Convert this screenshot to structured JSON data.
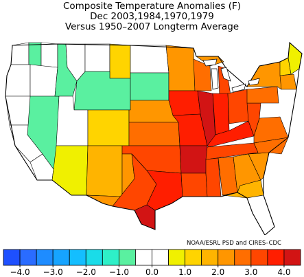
{
  "title": {
    "line1": "Composite Temperature Anomalies (F)",
    "line2": "Dec  2003,1984,1970,1979",
    "line3": "Versus 1950–2007 Longterm Average"
  },
  "credit": "NOAA/ESRL PSD and CIRES–CDC",
  "colorbar": {
    "bins": [
      {
        "lo": -4.5,
        "hi": -4.0,
        "color": "#1e50ff"
      },
      {
        "lo": -4.0,
        "hi": -3.5,
        "color": "#2a6cff"
      },
      {
        "lo": -3.5,
        "hi": -3.0,
        "color": "#1e8cff"
      },
      {
        "lo": -3.0,
        "hi": -2.5,
        "color": "#16a4ff"
      },
      {
        "lo": -2.5,
        "hi": -2.0,
        "color": "#14beff"
      },
      {
        "lo": -2.0,
        "hi": -1.5,
        "color": "#1adce8"
      },
      {
        "lo": -1.5,
        "hi": -1.0,
        "color": "#2ef0c8"
      },
      {
        "lo": -1.0,
        "hi": -0.5,
        "color": "#5af0a0"
      },
      {
        "lo": -0.5,
        "hi": 0.0,
        "color": "#ffffff"
      },
      {
        "lo": 0.0,
        "hi": 0.5,
        "color": "#ffffff"
      },
      {
        "lo": 0.5,
        "hi": 1.0,
        "color": "#f0f000"
      },
      {
        "lo": 1.0,
        "hi": 1.5,
        "color": "#ffd400"
      },
      {
        "lo": 1.5,
        "hi": 2.0,
        "color": "#ffb400"
      },
      {
        "lo": 2.0,
        "hi": 2.5,
        "color": "#ff9600"
      },
      {
        "lo": 2.5,
        "hi": 3.0,
        "color": "#ff6e00"
      },
      {
        "lo": 3.0,
        "hi": 3.5,
        "color": "#ff4600"
      },
      {
        "lo": 3.5,
        "hi": 4.0,
        "color": "#ff1e00"
      },
      {
        "lo": 4.0,
        "hi": 4.5,
        "color": "#d21414"
      }
    ],
    "tick_labels": [
      "−4.0",
      "−3.0",
      "−2.0",
      "−1.0",
      "0.0",
      "1.0",
      "2.0",
      "3.0",
      "4.0"
    ],
    "tick_values": [
      -4,
      -3,
      -2,
      -1,
      0,
      1,
      2,
      3,
      4
    ]
  },
  "regions": [
    {
      "name": "washington-coast",
      "anomaly": 0.0
    },
    {
      "name": "washington-cascades",
      "anomaly": -0.8
    },
    {
      "name": "washington-east",
      "anomaly": -0.3
    },
    {
      "name": "oregon-coast",
      "anomaly": 0.0
    },
    {
      "name": "oregon-east",
      "anomaly": 0.2
    },
    {
      "name": "california-north",
      "anomaly": 0.0
    },
    {
      "name": "california-central",
      "anomaly": 0.0
    },
    {
      "name": "california-south",
      "anomaly": 0.3
    },
    {
      "name": "nevada",
      "anomaly": -0.8
    },
    {
      "name": "idaho",
      "anomaly": -0.7
    },
    {
      "name": "montana-west",
      "anomaly": -0.4
    },
    {
      "name": "montana-central",
      "anomaly": 0.4
    },
    {
      "name": "montana-east",
      "anomaly": 1.3
    },
    {
      "name": "wyoming",
      "anomaly": -0.7
    },
    {
      "name": "utah",
      "anomaly": 0.4
    },
    {
      "name": "colorado",
      "anomaly": 1.2
    },
    {
      "name": "arizona",
      "anomaly": 0.8
    },
    {
      "name": "new-mexico",
      "anomaly": 1.6
    },
    {
      "name": "north-dakota",
      "anomaly": 0.3
    },
    {
      "name": "south-dakota",
      "anomaly": -0.8
    },
    {
      "name": "nebraska",
      "anomaly": 2.3
    },
    {
      "name": "kansas",
      "anomaly": 2.8
    },
    {
      "name": "oklahoma",
      "anomaly": 3.3
    },
    {
      "name": "texas-west",
      "anomaly": 2.3
    },
    {
      "name": "texas-central",
      "anomaly": 3.3
    },
    {
      "name": "texas-south",
      "anomaly": 4.2
    },
    {
      "name": "texas-east",
      "anomaly": 3.7
    },
    {
      "name": "minnesota",
      "anomaly": 2.2
    },
    {
      "name": "iowa",
      "anomaly": 3.6
    },
    {
      "name": "missouri",
      "anomaly": 3.8
    },
    {
      "name": "arkansas",
      "anomaly": 4.1
    },
    {
      "name": "louisiana",
      "anomaly": 3.4
    },
    {
      "name": "wisconsin",
      "anomaly": 2.7
    },
    {
      "name": "michigan-upper",
      "anomaly": 2.3
    },
    {
      "name": "michigan-lower",
      "anomaly": 3.2
    },
    {
      "name": "illinois",
      "anomaly": 4.1
    },
    {
      "name": "indiana",
      "anomaly": 3.8
    },
    {
      "name": "ohio",
      "anomaly": 3.3
    },
    {
      "name": "kentucky",
      "anomaly": 3.6
    },
    {
      "name": "tennessee",
      "anomaly": 3.3
    },
    {
      "name": "mississippi",
      "anomaly": 3.2
    },
    {
      "name": "alabama",
      "anomaly": 2.9
    },
    {
      "name": "georgia",
      "anomaly": 2.4
    },
    {
      "name": "florida-north",
      "anomaly": 1.7
    },
    {
      "name": "florida-south",
      "anomaly": 0.3
    },
    {
      "name": "south-carolina",
      "anomaly": 2.2
    },
    {
      "name": "north-carolina",
      "anomaly": 2.7
    },
    {
      "name": "virginia",
      "anomaly": 2.8
    },
    {
      "name": "west-virginia",
      "anomaly": 3.0
    },
    {
      "name": "pennsylvania",
      "anomaly": 2.7
    },
    {
      "name": "new-york",
      "anomaly": 2.2
    },
    {
      "name": "new-england-south",
      "anomaly": 2.3
    },
    {
      "name": "vermont-nh",
      "anomaly": 1.3
    },
    {
      "name": "maine",
      "anomaly": 0.8
    }
  ]
}
